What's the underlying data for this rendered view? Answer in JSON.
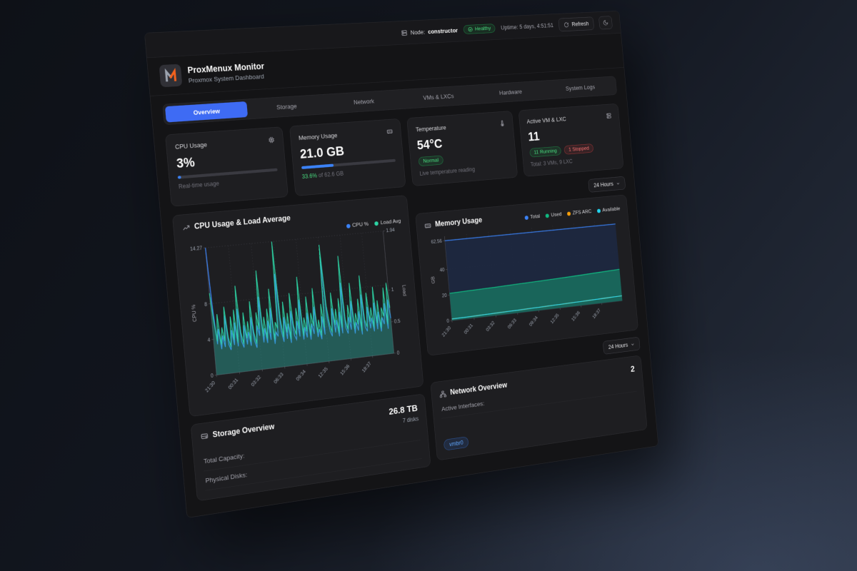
{
  "topbar": {
    "node_label": "Node:",
    "node_value": "constructor",
    "health_badge": "Healthy",
    "uptime": "Uptime: 5 days, 4:51:51",
    "refresh_label": "Refresh",
    "icons": [
      "server-icon",
      "check-circle-icon",
      "refresh-icon",
      "moon-icon"
    ]
  },
  "header": {
    "title": "ProxMenux Monitor",
    "subtitle": "Proxmox System Dashboard",
    "logo": "proxmenux-m-logo"
  },
  "tabs": [
    {
      "label": "Overview",
      "active": true
    },
    {
      "label": "Storage",
      "active": false
    },
    {
      "label": "Network",
      "active": false
    },
    {
      "label": "VMs & LXCs",
      "active": false
    },
    {
      "label": "Hardware",
      "active": false
    },
    {
      "label": "System Logs",
      "active": false
    }
  ],
  "stats": {
    "cpu": {
      "label": "CPU Usage",
      "value": "3%",
      "percent": 3,
      "caption": "Real-time usage",
      "icon": "cpu-icon",
      "bar_color": "#3b82f6"
    },
    "memory": {
      "label": "Memory Usage",
      "value": "21.0 GB",
      "percent": 33.6,
      "caption_highlight": "33.6%",
      "caption_rest": " of 62.6 GB",
      "icon": "memory-icon",
      "bar_color": "#3b82f6"
    },
    "temperature": {
      "label": "Temperature",
      "value": "54°C",
      "badge": "Normal",
      "caption": "Live temperature reading",
      "icon": "thermometer-icon",
      "badge_color": "#4ade80"
    },
    "vms": {
      "label": "Active VM & LXC",
      "value": "11",
      "running_badge": "11 Running",
      "stopped_badge": "1 Stopped",
      "caption": "Total: 3 VMs, 9 LXC",
      "icon": "server-stack-icon"
    }
  },
  "time_range": {
    "label": "24 Hours"
  },
  "time_range2": {
    "label": "24 Hours"
  },
  "storage": {
    "title": "Storage Overview",
    "icon": "hard-drive-icon",
    "total_value": "26.8 TB",
    "disks_value": "7 disks",
    "rows": {
      "r0": "Total Capacity:",
      "r1": "Physical Disks:"
    }
  },
  "network": {
    "title": "Network Overview",
    "icon": "network-icon",
    "count": "2",
    "row_label": "Active Interfaces:",
    "interface_badge": "vmbr0"
  },
  "colors": {
    "accent_blue": "#3b82f6",
    "healthy_green": "#4ade80",
    "stopped_red": "#f87171",
    "load_green": "#2dd4a4",
    "zfs_arc_orange": "#f59e0b",
    "available_cyan": "#22d3ee"
  },
  "chart_data": [
    {
      "type": "line",
      "title": "CPU Usage & Load Average",
      "title_icon": "trending-up-icon",
      "x_ticks": [
        "21:30",
        "00:31",
        "03:32",
        "06:33",
        "09:34",
        "12:35",
        "15:36",
        "18:37"
      ],
      "y_left": {
        "label": "CPU %",
        "ticks": [
          0,
          4,
          8,
          14.27
        ],
        "max": 14.27
      },
      "y_right": {
        "label": "Load",
        "ticks": [
          0,
          0.5,
          1,
          1.94
        ],
        "max": 1.94
      },
      "grid": true,
      "legend_position": "top-right",
      "series": [
        {
          "name": "CPU %",
          "axis": "left",
          "color": "#3b82f6",
          "fill": "rgba(59,130,246,0.10)",
          "values": [
            14.27,
            7.2,
            3.4,
            5.1,
            2.8,
            4.3,
            3.0,
            6.5,
            3.2,
            2.6,
            4.8,
            3.1,
            5.6,
            2.9,
            7.1,
            3.4,
            2.7,
            5.2,
            3.0,
            4.4,
            2.8,
            6.0,
            3.3,
            2.5,
            5.0,
            3.8,
            8.2,
            3.0,
            4.6,
            2.9,
            5.4,
            3.2,
            6.8,
            2.7,
            4.0,
            3.5,
            10.6,
            4.1,
            2.8,
            5.6,
            3.1,
            4.8,
            2.6,
            6.2,
            3.4,
            2.9,
            5.0,
            3.2,
            7.4,
            2.8,
            4.2,
            3.0,
            5.8,
            2.7,
            4.5,
            3.3,
            6.4,
            2.9,
            3.8,
            2.6,
            5.2,
            3.1,
            12.2,
            5.0,
            3.4,
            2.8,
            6.0,
            3.2,
            4.6,
            2.7,
            5.5,
            3.0,
            8.8,
            3.6,
            2.9,
            4.8,
            3.3,
            6.6,
            2.8,
            4.1,
            3.1,
            5.3,
            2.6,
            7.2,
            3.4,
            2.9,
            5.7,
            3.2,
            4.4,
            2.8,
            6.1,
            3.0,
            5.0,
            2.7,
            4.3,
            3.5,
            5.9,
            2.9,
            6.3,
            4.1
          ]
        },
        {
          "name": "Load Avg",
          "axis": "right",
          "color": "#2dd4a4",
          "fill": "rgba(45,212,164,0.30)",
          "values": [
            1.25,
            0.82,
            0.51,
            0.92,
            0.45,
            0.71,
            0.5,
            1.02,
            0.55,
            0.4,
            0.86,
            0.5,
            0.96,
            0.45,
            1.32,
            0.6,
            0.42,
            0.9,
            0.5,
            0.76,
            0.44,
            1.06,
            0.58,
            0.4,
            0.88,
            0.62,
            1.52,
            0.5,
            0.8,
            0.46,
            0.92,
            0.54,
            1.22,
            0.43,
            0.7,
            0.6,
            1.94,
            0.76,
            0.45,
            1.0,
            0.52,
            0.82,
            0.41,
            1.12,
            0.6,
            0.47,
            0.88,
            0.55,
            1.36,
            0.44,
            0.72,
            0.5,
            1.04,
            0.43,
            0.78,
            0.57,
            1.16,
            0.46,
            0.66,
            0.41,
            0.9,
            0.53,
            1.82,
            0.86,
            0.58,
            0.44,
            1.06,
            0.55,
            0.8,
            0.42,
            0.96,
            0.5,
            1.62,
            0.62,
            0.46,
            0.84,
            0.56,
            1.18,
            0.45,
            0.7,
            0.52,
            0.92,
            0.41,
            1.28,
            0.58,
            0.46,
            1.0,
            0.54,
            0.76,
            0.44,
            1.08,
            0.5,
            0.86,
            0.42,
            0.74,
            0.6,
            1.05,
            0.47,
            1.12,
            0.72
          ]
        }
      ]
    },
    {
      "type": "area",
      "title": "Memory Usage",
      "title_icon": "memory-icon",
      "x_ticks": [
        "21:30",
        "00:31",
        "03:32",
        "06:33",
        "09:34",
        "12:35",
        "15:36",
        "18:37"
      ],
      "y_left": {
        "label": "GB",
        "ticks": [
          0,
          20,
          40,
          62.56
        ],
        "max": 66
      },
      "grid": true,
      "legend_position": "top",
      "series": [
        {
          "name": "Total",
          "axis": "left",
          "color": "#3b82f6",
          "fill": "rgba(30,40,64,0.95)",
          "values": [
            62.56,
            62.56,
            62.56,
            62.56,
            62.56,
            62.56,
            62.56,
            62.56,
            62.56
          ]
        },
        {
          "name": "Used",
          "axis": "left",
          "color": "#10b981",
          "fill": "rgba(25,106,92,0.92)",
          "values": [
            21.3,
            21.7,
            22.1,
            22.6,
            23.1,
            23.6,
            24.2,
            24.9,
            25.6
          ]
        },
        {
          "name": "ZFS ARC",
          "axis": "left",
          "color": "#f59e0b",
          "fill": "none",
          "values": [
            1.2,
            1.5,
            1.8,
            2.1,
            2.5,
            2.8,
            3.2,
            3.6,
            4.0
          ]
        },
        {
          "name": "Available",
          "axis": "left",
          "color": "#22d3ee",
          "fill": "none",
          "values": [
            1.2,
            1.5,
            1.8,
            2.1,
            2.5,
            2.8,
            3.2,
            3.6,
            4.0
          ]
        }
      ]
    }
  ]
}
